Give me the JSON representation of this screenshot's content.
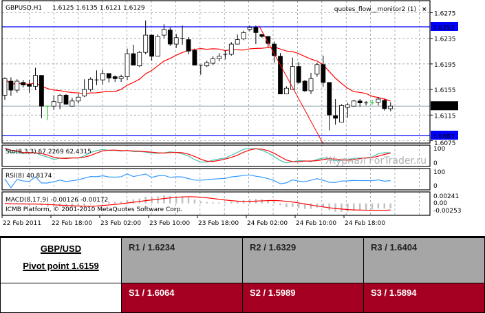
{
  "chart_header": {
    "symbol": "GBPUSD,H1",
    "ohlc": "1.6125 1.6135 1.6121 1.6129",
    "expert": "quotes_flow__monitor2 (1)",
    "expert_icon": "close-x-icon"
  },
  "price_axis": {
    "labels": [
      "1.6275",
      "1.6235",
      "1.6195",
      "1.6155",
      "1.6115",
      "1.6075"
    ],
    "levels": [
      {
        "price": 1.6253,
        "label": "1.6253",
        "color": "#0000ff"
      },
      {
        "price": 1.6083,
        "label": "1.6083",
        "color": "#0000ff"
      }
    ],
    "current": {
      "price": 1.6129,
      "label": "1.6129"
    }
  },
  "colors": {
    "ma": "#ff0000",
    "stoch_main": "#40c0b0",
    "stoch_signal": "#ff0000",
    "rsi": "#3399ff",
    "macd_hist": "#c0c0c0",
    "macd_signal": "#ff0000",
    "level": "#0000ff",
    "grid": "#8090a0",
    "bull_tick": "#00cc00"
  },
  "candles": [
    [
      1.6146,
      1.6174,
      1.6139,
      1.6172
    ],
    [
      1.6168,
      1.6174,
      1.6145,
      1.6154
    ],
    [
      1.6154,
      1.6171,
      1.615,
      1.6168
    ],
    [
      1.6166,
      1.617,
      1.6158,
      1.6162
    ],
    [
      1.6163,
      1.617,
      1.615,
      1.616
    ],
    [
      1.616,
      1.6189,
      1.6154,
      1.6177
    ],
    [
      1.6177,
      1.6177,
      1.611,
      1.6129
    ],
    [
      1.6128,
      1.6129,
      1.6107,
      1.6129
    ],
    [
      1.6129,
      1.6146,
      1.6123,
      1.6136
    ],
    [
      1.6134,
      1.6148,
      1.6124,
      1.6146
    ],
    [
      1.6146,
      1.6148,
      1.6132,
      1.6132
    ],
    [
      1.6129,
      1.6142,
      1.6128,
      1.6137
    ],
    [
      1.6137,
      1.6148,
      1.6133,
      1.6143
    ],
    [
      1.6145,
      1.6171,
      1.6143,
      1.6155
    ],
    [
      1.6155,
      1.6174,
      1.6152,
      1.6171
    ],
    [
      1.617,
      1.6185,
      1.6162,
      1.617
    ],
    [
      1.617,
      1.6186,
      1.6163,
      1.618
    ],
    [
      1.618,
      1.618,
      1.6166,
      1.6173
    ],
    [
      1.6175,
      1.6177,
      1.6167,
      1.6172
    ],
    [
      1.6172,
      1.6178,
      1.6167,
      1.6175
    ],
    [
      1.6175,
      1.6219,
      1.617,
      1.6211
    ],
    [
      1.6211,
      1.6225,
      1.6193,
      1.6193
    ],
    [
      1.6192,
      1.6215,
      1.619,
      1.6213
    ],
    [
      1.6213,
      1.6263,
      1.621,
      1.624
    ],
    [
      1.624,
      1.6241,
      1.62,
      1.6207
    ],
    [
      1.6207,
      1.6241,
      1.6207,
      1.6238
    ],
    [
      1.624,
      1.6257,
      1.6235,
      1.6249
    ],
    [
      1.6248,
      1.6252,
      1.6223,
      1.6226
    ],
    [
      1.6226,
      1.6242,
      1.622,
      1.6236
    ],
    [
      1.6235,
      1.6255,
      1.6225,
      1.6234
    ],
    [
      1.6233,
      1.6237,
      1.621,
      1.6215
    ],
    [
      1.6216,
      1.6219,
      1.6193,
      1.6193
    ],
    [
      1.6193,
      1.6193,
      1.6178,
      1.6192
    ],
    [
      1.6192,
      1.62,
      1.619,
      1.6197
    ],
    [
      1.6196,
      1.6207,
      1.6193,
      1.6203
    ],
    [
      1.6203,
      1.6212,
      1.6199,
      1.6207
    ],
    [
      1.6209,
      1.6216,
      1.6202,
      1.621
    ],
    [
      1.621,
      1.6229,
      1.6208,
      1.6226
    ],
    [
      1.6226,
      1.6241,
      1.6226,
      1.6233
    ],
    [
      1.6234,
      1.6247,
      1.6232,
      1.6244
    ],
    [
      1.6249,
      1.6255,
      1.6246,
      1.6252
    ],
    [
      1.6252,
      1.6255,
      1.6226,
      1.6244
    ],
    [
      1.6241,
      1.6242,
      1.6236,
      1.6238
    ],
    [
      1.6238,
      1.6238,
      1.6221,
      1.6227
    ],
    [
      1.6226,
      1.623,
      1.6197,
      1.6208
    ],
    [
      1.6207,
      1.6212,
      1.6148,
      1.6148
    ],
    [
      1.6148,
      1.616,
      1.6148,
      1.6157
    ],
    [
      1.6155,
      1.6205,
      1.6155,
      1.6191
    ],
    [
      1.6191,
      1.6198,
      1.6164,
      1.6166
    ],
    [
      1.6168,
      1.617,
      1.6151,
      1.6153
    ],
    [
      1.6153,
      1.6181,
      1.6148,
      1.6172
    ],
    [
      1.6179,
      1.6197,
      1.6175,
      1.6194
    ],
    [
      1.6194,
      1.6208,
      1.6159,
      1.6166
    ],
    [
      1.6166,
      1.6166,
      1.6091,
      1.6115
    ],
    [
      1.6114,
      1.614,
      1.61,
      1.611
    ],
    [
      1.6104,
      1.6132,
      1.6104,
      1.613
    ],
    [
      1.6127,
      1.6134,
      1.6111,
      1.6131
    ],
    [
      1.6129,
      1.6139,
      1.6128,
      1.6137
    ],
    [
      1.6137,
      1.614,
      1.6128,
      1.6134
    ],
    [
      1.6134,
      1.6137,
      1.613,
      1.6134
    ],
    [
      1.6134,
      1.6139,
      1.6131,
      1.6134
    ],
    [
      1.6135,
      1.6143,
      1.613,
      1.614
    ],
    [
      1.6138,
      1.614,
      1.6122,
      1.6125
    ],
    [
      1.6125,
      1.6135,
      1.6121,
      1.6129
    ]
  ],
  "green_ticks": [
    7,
    60
  ],
  "trendline": {
    "from": {
      "bar": 41.5,
      "price": 1.6255
    },
    "to": {
      "bar": 52,
      "price": 1.607
    }
  },
  "stochastic": {
    "label": "Sto(8,3,3) 67.2269 62.4315",
    "axis": [
      "100",
      "0"
    ]
  },
  "rsi": {
    "label": "RSI(8) 40.8174",
    "axis": [
      "100",
      "0"
    ]
  },
  "macd": {
    "label": "MACD(8,17,9) -0.00126 -0.00172",
    "axis": [
      "0.00241",
      "0.00",
      "-0.00253"
    ],
    "range": [
      -0.00253,
      0.00241
    ]
  },
  "copyright": "ICMB Platform, © 2001-2010 MetaQuotes Software Corp.",
  "watermark": "Журнал ForTrader.ru",
  "time_labels": [
    "22 Feb 2011",
    "22 Feb 18:00",
    "23 Feb 02:00",
    "23 Feb 10:00",
    "23 Feb 18:00",
    "24 Feb 02:00",
    "24 Feb 10:00",
    "24 Feb 18:00"
  ],
  "pivot_table": {
    "symbol": "GBP/USD",
    "pivot": "Pivot point 1.6159",
    "resistance": [
      "R1 / 1.6234",
      "R2 / 1.6329",
      "R3 / 1.6404"
    ],
    "support": [
      "S1 / 1.6064",
      "S2 / 1.5989",
      "S3 / 1.5894"
    ]
  }
}
